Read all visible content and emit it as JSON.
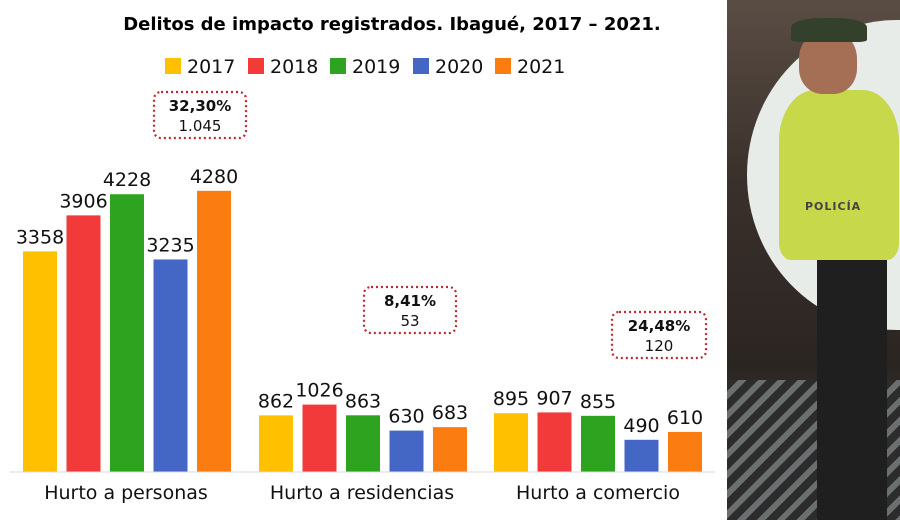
{
  "chart_data": {
    "type": "bar",
    "title": "Delitos de impacto registrados. Ibagué, 2017 – 2021.",
    "categories": [
      "Hurto a personas",
      "Hurto a residencias",
      "Hurto a comercio"
    ],
    "series": [
      {
        "name": "2017",
        "color": "#ffc000",
        "values": [
          3358,
          862,
          895
        ]
      },
      {
        "name": "2018",
        "color": "#f23a3a",
        "values": [
          3906,
          1026,
          907
        ]
      },
      {
        "name": "2019",
        "color": "#2ea31f",
        "values": [
          4228,
          863,
          855
        ]
      },
      {
        "name": "2020",
        "color": "#4466c4",
        "values": [
          3235,
          630,
          490
        ]
      },
      {
        "name": "2021",
        "color": "#fb7d12",
        "values": [
          4280,
          683,
          610
        ]
      }
    ],
    "annotations": [
      {
        "category": "Hurto a personas",
        "percent": "32,30%",
        "value": "1.045"
      },
      {
        "category": "Hurto a residencias",
        "percent": "8,41%",
        "value": "53"
      },
      {
        "category": "Hurto a comercio",
        "percent": "24,48%",
        "value": "120"
      }
    ],
    "ylim": [
      0,
      5000
    ],
    "grid": false,
    "legend": "top-center",
    "annotation_border_color": "#c0282f"
  },
  "photo": {
    "icon": "police-officer-photo",
    "vest_label": "POLICÍA"
  }
}
